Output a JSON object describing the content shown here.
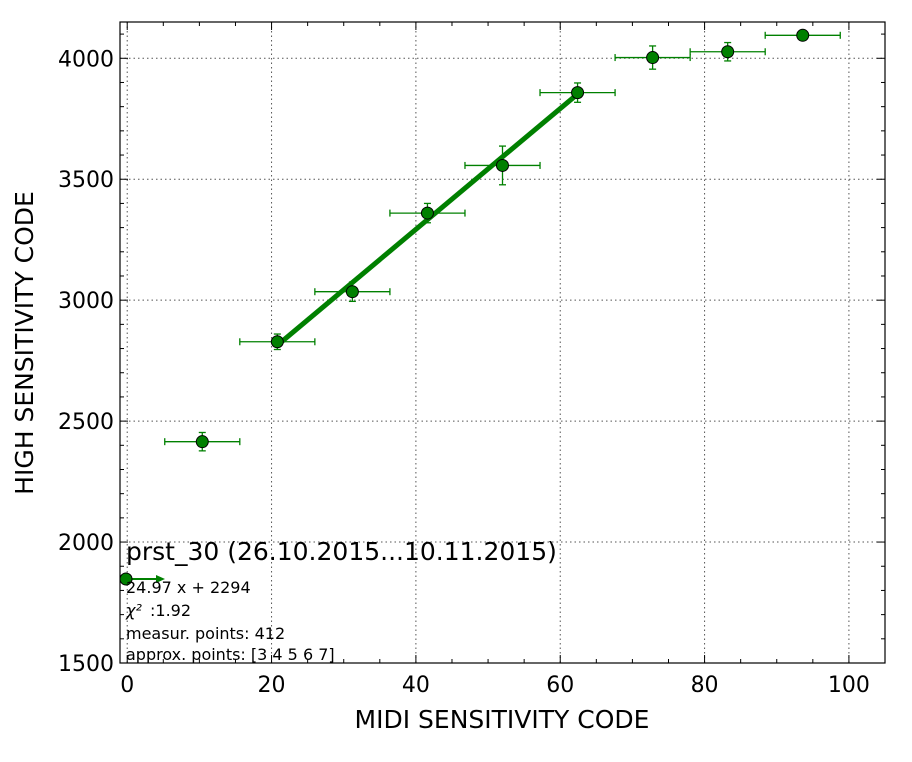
{
  "chart_data": {
    "type": "scatter",
    "title": "prst_30 (26.10.2015...10.11.2015)",
    "xlabel": "MIDI SENSITIVITY CODE",
    "ylabel": "HIGH SENSITIVITY CODE",
    "xlim": [
      -1,
      105
    ],
    "ylim": [
      1500,
      4150
    ],
    "xticks": [
      0,
      20,
      40,
      60,
      80,
      100
    ],
    "yticks": [
      1500,
      2000,
      2500,
      3000,
      3500,
      4000
    ],
    "xtick_labels": [
      "0",
      "20",
      "40",
      "60",
      "80",
      "100"
    ],
    "ytick_labels": [
      "1500",
      "2000",
      "2500",
      "3000",
      "3500",
      "4000"
    ],
    "grid": true,
    "colors": {
      "series": "#008000",
      "marker_edge": "#000000"
    },
    "series": [
      {
        "points": [
          {
            "x": 10.4,
            "y": 2415,
            "xerr": 5.2,
            "yerr": 38
          },
          {
            "x": 20.8,
            "y": 2828,
            "xerr": 5.2,
            "yerr": 32
          },
          {
            "x": 31.2,
            "y": 3035,
            "xerr": 5.2,
            "yerr": 40
          },
          {
            "x": 41.6,
            "y": 3360,
            "xerr": 5.2,
            "yerr": 40
          },
          {
            "x": 52.0,
            "y": 3557,
            "xerr": 5.2,
            "yerr": 80
          },
          {
            "x": 62.4,
            "y": 3858,
            "xerr": 5.2,
            "yerr": 40
          },
          {
            "x": 72.8,
            "y": 4003,
            "xerr": 5.2,
            "yerr": 48
          },
          {
            "x": 83.2,
            "y": 4027,
            "xerr": 5.2,
            "yerr": 38
          },
          {
            "x": 93.6,
            "y": 4095,
            "xerr": 5.2,
            "yerr": 8
          }
        ]
      }
    ],
    "fit_line": {
      "slope": 24.97,
      "intercept": 2294,
      "x_start": 20.8,
      "x_end": 62.4
    },
    "legend": {
      "fit_equation": "24.97 x + 2294",
      "chi2_label": "χ²",
      "chi2_value": ":1.92",
      "measur_points": "measur. points: 412",
      "approx_points": "approx. points: [3 4 5 6 7]"
    }
  }
}
